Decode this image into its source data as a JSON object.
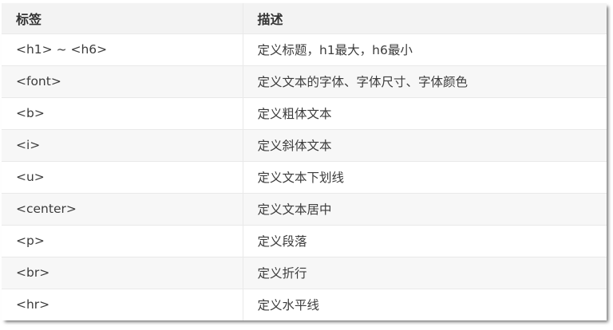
{
  "theme": {
    "header_bg": "#f3f3f3",
    "stripe_bg": "#f7f7f7",
    "border_color": "#e9e9e9",
    "header_text_color": "#333333",
    "body_text_color": "#3c3c3c"
  },
  "table": {
    "columns": [
      {
        "key": "tag",
        "label": "标签"
      },
      {
        "key": "desc",
        "label": "描述"
      }
    ],
    "rows": [
      {
        "tag": "<h1> ~ <h6>",
        "desc": "定义标题，h1最大，h6最小"
      },
      {
        "tag": "<font>",
        "desc": "定义文本的字体、字体尺寸、字体颜色"
      },
      {
        "tag": "<b>",
        "desc": "定义粗体文本"
      },
      {
        "tag": "<i>",
        "desc": "定义斜体文本"
      },
      {
        "tag": "<u>",
        "desc": "定义文本下划线"
      },
      {
        "tag": "<center>",
        "desc": "定义文本居中"
      },
      {
        "tag": "<p>",
        "desc": "定义段落"
      },
      {
        "tag": "<br>",
        "desc": "定义折行"
      },
      {
        "tag": "<hr>",
        "desc": "定义水平线"
      }
    ]
  }
}
